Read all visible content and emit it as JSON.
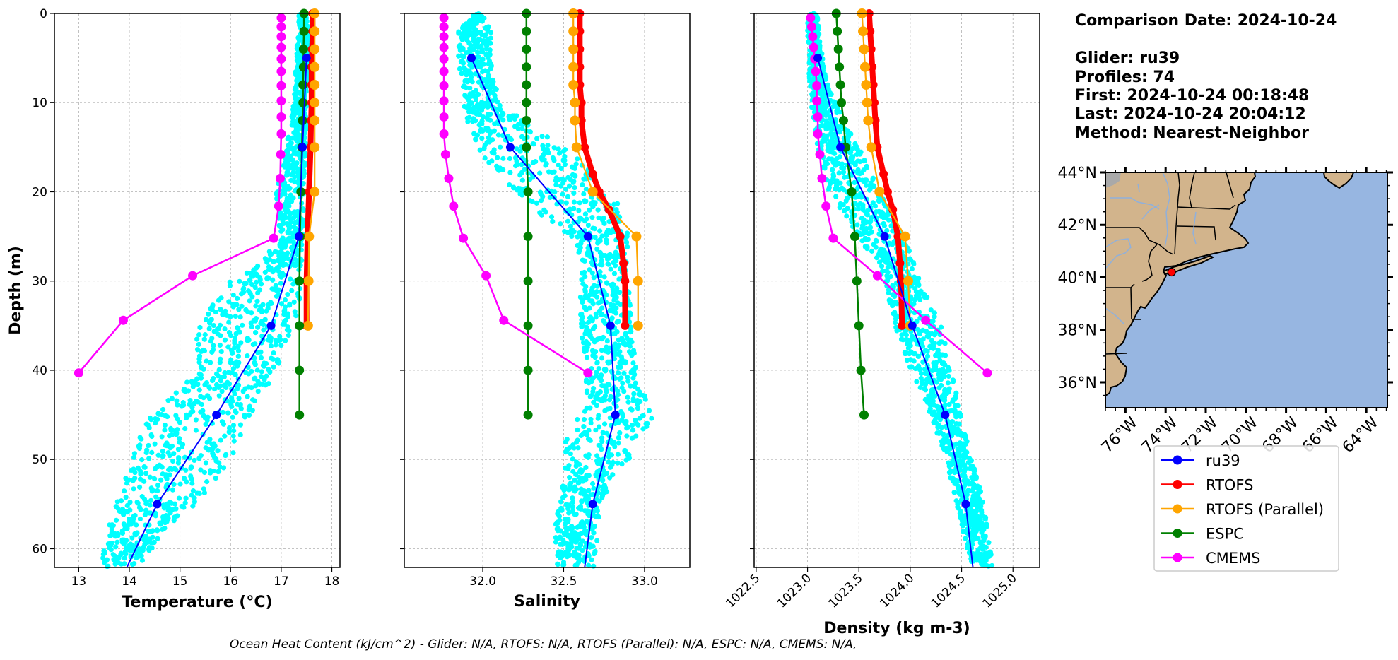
{
  "info": {
    "comparison_date": "Comparison Date: 2024-10-24",
    "glider": "Glider: ru39",
    "profiles": "Profiles: 74",
    "first": "First: 2024-10-24 00:18:48",
    "last": "Last: 2024-10-24 20:04:12",
    "method": "Method: Nearest-Neighbor"
  },
  "footer": "Ocean Heat Content (kJ/cm^2) - Glider: N/A,  RTOFS: N/A,  RTOFS (Parallel): N/A,  ESPC: N/A,  CMEMS: N/A,",
  "colors": {
    "ru39": "#0000ff",
    "glider_scatter": "#00ffff",
    "RTOFS": "#ff0000",
    "RTOFS_parallel": "#ffa500",
    "ESPC": "#008000",
    "CMEMS": "#ff00ff",
    "land": "#d2b48c",
    "ocean": "#97b6e1",
    "river": "#97b6e1",
    "glider_marker": "#ff0000"
  },
  "legend": {
    "placement": "below-map",
    "entries": [
      "ru39",
      "RTOFS",
      "RTOFS (Parallel)",
      "ESPC",
      "CMEMS"
    ]
  },
  "chart_data": [
    {
      "type": "line",
      "title": "",
      "xlabel": "Temperature (°C)",
      "ylabel": "Depth (m)",
      "xlim": [
        12.52,
        18.16
      ],
      "ylim": [
        62.1,
        0
      ],
      "xticks": [
        13,
        14,
        15,
        16,
        17,
        18
      ],
      "xtick_labels": [
        "13",
        "14",
        "15",
        "16",
        "17",
        "18"
      ],
      "yticks": [
        0,
        10,
        20,
        30,
        40,
        50,
        60
      ],
      "ytick_labels": [
        "0",
        "10",
        "20",
        "30",
        "40",
        "50",
        "60"
      ],
      "grid": true,
      "scatter_envelope": {
        "name": "glider profiles",
        "depth": [
          0,
          5,
          10,
          15,
          20,
          25,
          28,
          30,
          33,
          36,
          40,
          43,
          46,
          50,
          54,
          58,
          62
        ],
        "min": [
          17.35,
          17.3,
          17.25,
          17.1,
          16.9,
          16.95,
          16.6,
          16.0,
          15.6,
          15.3,
          15.4,
          14.8,
          14.3,
          14.0,
          13.8,
          13.55,
          13.45
        ],
        "max": [
          17.55,
          17.55,
          17.5,
          17.5,
          17.45,
          17.45,
          17.4,
          17.4,
          17.35,
          17.2,
          16.9,
          16.6,
          16.3,
          16.0,
          15.5,
          14.7,
          14.2
        ]
      },
      "series": [
        {
          "name": "ru39",
          "depth": [
            5,
            15,
            25,
            35,
            45,
            55,
            62.1
          ],
          "values": [
            17.5,
            17.42,
            17.35,
            16.8,
            15.72,
            14.55,
            13.95
          ]
        },
        {
          "name": "RTOFS",
          "depth": [
            0,
            2,
            4,
            6,
            8,
            10,
            12,
            15,
            20,
            25,
            30,
            35
          ],
          "values": [
            17.62,
            17.62,
            17.61,
            17.6,
            17.6,
            17.6,
            17.59,
            17.58,
            17.55,
            17.52,
            17.5,
            17.5
          ]
        },
        {
          "name": "RTOFS (Parallel)",
          "depth": [
            0,
            2,
            4,
            6,
            8,
            10,
            12,
            15,
            20,
            25,
            30,
            35
          ],
          "values": [
            17.66,
            17.66,
            17.66,
            17.66,
            17.66,
            17.66,
            17.66,
            17.66,
            17.66,
            17.55,
            17.54,
            17.53
          ]
        },
        {
          "name": "ESPC",
          "depth": [
            0,
            2,
            4,
            6,
            8,
            10,
            12,
            15,
            20,
            25,
            30,
            35,
            40,
            45
          ],
          "values": [
            17.45,
            17.45,
            17.44,
            17.44,
            17.43,
            17.43,
            17.42,
            17.41,
            17.39,
            17.37,
            17.36,
            17.36,
            17.36,
            17.36
          ]
        },
        {
          "name": "CMEMS",
          "depth": [
            0.5,
            1.5,
            2.6,
            3.8,
            5.1,
            6.5,
            8.1,
            9.8,
            11.6,
            13.5,
            15.8,
            18.5,
            21.6,
            25.2,
            29.4,
            34.4,
            40.3
          ],
          "values": [
            17.0,
            17.0,
            17.0,
            17.0,
            17.0,
            17.0,
            17.0,
            17.0,
            17.0,
            17.0,
            16.99,
            16.98,
            16.95,
            16.85,
            15.25,
            13.88,
            13.0
          ]
        }
      ]
    },
    {
      "type": "line",
      "title": "",
      "xlabel": "Salinity",
      "ylabel": "",
      "xlim": [
        31.515,
        33.28
      ],
      "ylim": [
        62.1,
        0
      ],
      "xticks": [
        32.0,
        32.5,
        33.0
      ],
      "xtick_labels": [
        "32.0",
        "32.5",
        "33.0"
      ],
      "yticks": [
        0,
        10,
        20,
        30,
        40,
        50,
        60
      ],
      "grid": true,
      "scatter_envelope": {
        "name": "glider profiles",
        "depth": [
          0,
          2,
          5,
          10,
          12,
          15,
          18,
          20,
          22,
          25,
          28,
          30,
          35,
          40,
          45,
          48,
          52,
          56,
          62
        ],
        "min": [
          31.95,
          31.85,
          31.85,
          31.88,
          31.9,
          31.95,
          32.1,
          32.2,
          32.3,
          32.55,
          32.6,
          32.6,
          32.6,
          32.65,
          32.6,
          32.5,
          32.5,
          32.45,
          32.45
        ],
        "max": [
          32.0,
          32.05,
          32.05,
          32.1,
          32.25,
          32.5,
          32.7,
          32.8,
          32.85,
          32.9,
          32.9,
          32.9,
          32.92,
          32.95,
          33.05,
          33.0,
          32.8,
          32.72,
          32.7
        ]
      },
      "series": [
        {
          "name": "ru39",
          "depth": [
            5,
            15,
            25,
            35,
            45,
            55,
            62.1
          ],
          "values": [
            31.93,
            32.17,
            32.65,
            32.79,
            32.82,
            32.68,
            32.63
          ]
        },
        {
          "name": "RTOFS",
          "depth": [
            0,
            2,
            4,
            6,
            8,
            10,
            12,
            15,
            18,
            20,
            22,
            25,
            28,
            30,
            35
          ],
          "values": [
            32.6,
            32.6,
            32.6,
            32.6,
            32.6,
            32.61,
            32.61,
            32.63,
            32.68,
            32.72,
            32.78,
            32.85,
            32.87,
            32.88,
            32.88
          ]
        },
        {
          "name": "RTOFS (Parallel)",
          "depth": [
            0,
            2,
            4,
            6,
            8,
            10,
            12,
            15,
            20,
            25,
            30,
            35
          ],
          "values": [
            32.56,
            32.56,
            32.56,
            32.56,
            32.56,
            32.57,
            32.57,
            32.58,
            32.68,
            32.95,
            32.96,
            32.96
          ]
        },
        {
          "name": "ESPC",
          "depth": [
            0,
            2,
            4,
            6,
            8,
            10,
            12,
            15,
            20,
            25,
            30,
            35,
            40,
            45
          ],
          "values": [
            32.27,
            32.27,
            32.27,
            32.27,
            32.27,
            32.27,
            32.27,
            32.27,
            32.28,
            32.28,
            32.28,
            32.28,
            32.28,
            32.28
          ]
        },
        {
          "name": "CMEMS",
          "depth": [
            0.5,
            1.5,
            2.6,
            3.8,
            5.1,
            6.5,
            8.1,
            9.8,
            11.6,
            13.5,
            15.8,
            18.5,
            21.6,
            25.2,
            29.4,
            34.4,
            40.3
          ],
          "values": [
            31.76,
            31.76,
            31.76,
            31.76,
            31.76,
            31.76,
            31.76,
            31.76,
            31.76,
            31.76,
            31.77,
            31.79,
            31.82,
            31.88,
            32.02,
            32.13,
            32.65
          ]
        }
      ]
    },
    {
      "type": "line",
      "title": "",
      "xlabel": "Density (kg m-3)",
      "ylabel": "",
      "xlim": [
        1022.48,
        1025.26
      ],
      "ylim": [
        62.1,
        0
      ],
      "xticks": [
        1022.5,
        1023.0,
        1023.5,
        1024.0,
        1024.5,
        1025.0
      ],
      "xtick_labels": [
        "1022.5",
        "1023.0",
        "1023.5",
        "1024.0",
        "1024.5",
        "1025.0"
      ],
      "xtick_rotation": 45,
      "yticks": [
        0,
        10,
        20,
        30,
        40,
        50,
        60
      ],
      "grid": true,
      "scatter_envelope": {
        "name": "glider profiles",
        "depth": [
          0,
          3,
          8,
          12,
          15,
          20,
          25,
          30,
          35,
          40,
          45,
          50,
          55,
          60,
          62
        ],
        "min": [
          1023.0,
          1023.0,
          1023.02,
          1023.05,
          1023.1,
          1023.2,
          1023.5,
          1023.75,
          1023.85,
          1024.0,
          1024.2,
          1024.35,
          1024.45,
          1024.55,
          1024.6
        ],
        "max": [
          1023.1,
          1023.12,
          1023.2,
          1023.35,
          1023.5,
          1023.7,
          1023.95,
          1024.1,
          1024.3,
          1024.4,
          1024.5,
          1024.6,
          1024.72,
          1024.78,
          1024.8
        ]
      },
      "series": [
        {
          "name": "ru39",
          "depth": [
            5,
            15,
            25,
            35,
            45,
            55,
            62.1
          ],
          "values": [
            1023.1,
            1023.32,
            1023.75,
            1024.02,
            1024.34,
            1024.54,
            1024.61
          ]
        },
        {
          "name": "RTOFS",
          "depth": [
            0,
            2,
            4,
            6,
            8,
            10,
            12,
            15,
            18,
            20,
            22,
            25,
            28,
            30,
            35
          ],
          "values": [
            1023.6,
            1023.61,
            1023.62,
            1023.63,
            1023.64,
            1023.65,
            1023.66,
            1023.68,
            1023.74,
            1023.78,
            1023.83,
            1023.88,
            1023.9,
            1023.91,
            1023.92
          ]
        },
        {
          "name": "RTOFS (Parallel)",
          "depth": [
            0,
            2,
            4,
            6,
            8,
            10,
            12,
            15,
            20,
            25,
            30,
            35
          ],
          "values": [
            1023.53,
            1023.54,
            1023.55,
            1023.56,
            1023.57,
            1023.58,
            1023.59,
            1023.62,
            1023.7,
            1023.95,
            1023.98,
            1024.0
          ]
        },
        {
          "name": "ESPC",
          "depth": [
            0,
            2,
            4,
            6,
            8,
            10,
            12,
            15,
            20,
            25,
            30,
            35,
            40,
            45
          ],
          "values": [
            1023.28,
            1023.29,
            1023.3,
            1023.31,
            1023.32,
            1023.33,
            1023.35,
            1023.37,
            1023.43,
            1023.46,
            1023.48,
            1023.5,
            1023.52,
            1023.55
          ]
        },
        {
          "name": "CMEMS",
          "depth": [
            0.5,
            1.5,
            2.6,
            3.8,
            5.1,
            6.5,
            8.1,
            9.8,
            11.6,
            13.5,
            15.8,
            18.5,
            21.6,
            25.2,
            29.4,
            34.4,
            40.3
          ],
          "values": [
            1023.03,
            1023.04,
            1023.05,
            1023.06,
            1023.07,
            1023.08,
            1023.09,
            1023.09,
            1023.1,
            1023.1,
            1023.12,
            1023.14,
            1023.18,
            1023.25,
            1023.68,
            1024.15,
            1024.75
          ]
        }
      ]
    },
    {
      "type": "map",
      "title": "",
      "lon_range": [
        -77.0,
        -62.95
      ],
      "lat_range": [
        35.03,
        44.0
      ],
      "xticks": [
        -76,
        -74,
        -72,
        -70,
        -68,
        -66,
        -64
      ],
      "xtick_labels": [
        "76°W",
        "74°W",
        "72°W",
        "70°W",
        "68°W",
        "66°W",
        "64°W"
      ],
      "yticks": [
        36,
        38,
        40,
        42,
        44
      ],
      "ytick_labels": [
        "36°N",
        "38°N",
        "40°N",
        "42°N",
        "44°N"
      ],
      "glider_location": {
        "lon": -73.7,
        "lat": 40.2
      }
    }
  ]
}
